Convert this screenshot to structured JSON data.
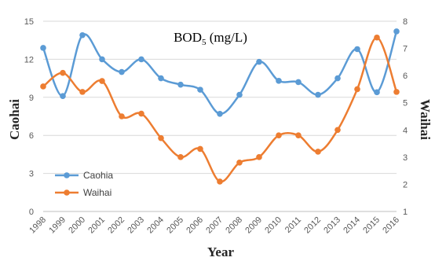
{
  "chart_data": {
    "type": "line",
    "title_main": "BOD",
    "title_sub": "5",
    "title_unit": " (mg/L)",
    "xlabel": "Year",
    "ylabel_left": "Caohai",
    "ylabel_right": "Waihai",
    "x": [
      "1998",
      "1999",
      "2000",
      "2001",
      "2002",
      "2003",
      "2004",
      "2005",
      "2006",
      "2007",
      "2008",
      "2009",
      "2010",
      "2011",
      "2012",
      "2013",
      "2014",
      "2015",
      "2016"
    ],
    "y_left_ticks": [
      "0",
      "3",
      "6",
      "9",
      "12",
      "15"
    ],
    "y_right_ticks": [
      "1",
      "2",
      "3",
      "4",
      "5",
      "6",
      "7",
      "8"
    ],
    "ylim_left": [
      0,
      15
    ],
    "ylim_right": [
      1,
      8
    ],
    "grid": "horizontal",
    "legend_position": "bottom-left",
    "series": [
      {
        "name": "Caohia",
        "axis": "left",
        "color": "#5b9bd5",
        "values": [
          12.9,
          9.1,
          13.9,
          12.0,
          11.0,
          12.0,
          10.5,
          10.0,
          9.6,
          7.7,
          9.2,
          11.8,
          10.3,
          10.2,
          9.2,
          10.5,
          12.8,
          9.4,
          14.2
        ]
      },
      {
        "name": "Waihai",
        "axis": "right",
        "color": "#ed7d31",
        "values": [
          5.6,
          6.1,
          5.4,
          5.8,
          4.5,
          4.6,
          3.7,
          3.0,
          3.3,
          2.1,
          2.8,
          3.0,
          3.8,
          3.8,
          3.2,
          4.0,
          5.5,
          7.4,
          5.4
        ]
      }
    ]
  }
}
